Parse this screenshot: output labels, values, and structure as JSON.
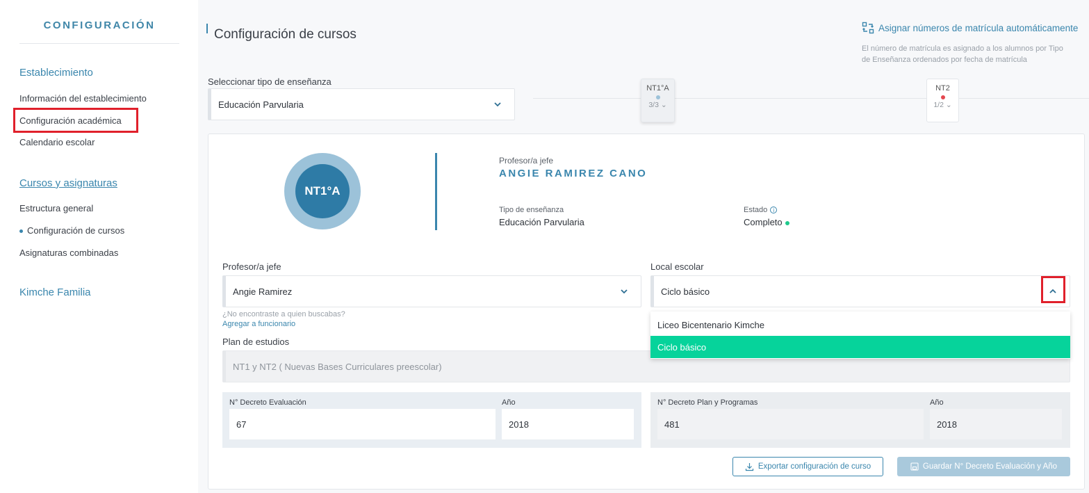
{
  "sidebar": {
    "title": "CONFIGURACIÓN",
    "section_establecimiento": "Establecimiento",
    "item_info": "Información del establecimiento",
    "item_config_academica": "Configuración académica",
    "item_calendario": "Calendario escolar",
    "section_cursos": "Cursos y asignaturas",
    "item_estructura": "Estructura general",
    "item_config_cursos": "Configuración de cursos",
    "item_asignaturas": "Asignaturas combinadas",
    "section_kimche": "Kimche Familia"
  },
  "header": {
    "title": "Configuración de cursos",
    "auto_assign_label": "Asignar números de matrícula automáticamente",
    "auto_assign_note": "El número de matrícula es asignado a los alumnos por Tipo de Enseñanza ordenados por fecha de matrícula"
  },
  "teaching_type": {
    "label": "Seleccionar tipo de enseñanza",
    "value": "Educación Parvularia"
  },
  "courses": [
    {
      "name": "NT1°A",
      "count": "3/3",
      "dot_color": "#9cc2d9",
      "active": true
    },
    {
      "name": "NT2",
      "count": "1/2",
      "dot_color": "#e4474f",
      "active": false
    }
  ],
  "card": {
    "badge": "NT1°A",
    "head_teacher_label": "Profesor/a jefe",
    "head_teacher_name": "ANGIE RAMIREZ CANO",
    "type_label": "Tipo de enseñanza",
    "type_value": "Educación Parvularia",
    "status_label": "Estado",
    "status_value": "Completo",
    "status_color": "#1ec98c",
    "teacher_field_label": "Profesor/a jefe",
    "teacher_field_value": "Angie Ramirez",
    "not_found_note": "¿No encontraste a quien buscabas?",
    "add_staff_link": "Agregar a funcionario",
    "local_label": "Local escolar",
    "local_value": "Ciclo básico",
    "local_options": [
      "Liceo Bicentenario Kimche",
      "Ciclo básico"
    ],
    "plan_label": "Plan de estudios",
    "plan_value": "NT1 y NT2 ( Nuevas Bases Curriculares preescolar)",
    "eval_decree_label": "N° Decreto Evaluación",
    "eval_decree_value": "67",
    "eval_year_label": "Año",
    "eval_year_value": "2018",
    "plan_decree_label": "N° Decreto Plan y Programas",
    "plan_decree_value": "481",
    "plan_year_label": "Año",
    "plan_year_value": "2018",
    "export_button": "Exportar configuración de curso",
    "save_button": "Guardar N° Decreto Evaluación y Año"
  },
  "colors": {
    "accent": "#3a86ad",
    "selected_option": "#06d39b",
    "highlight": "#e0202b"
  }
}
